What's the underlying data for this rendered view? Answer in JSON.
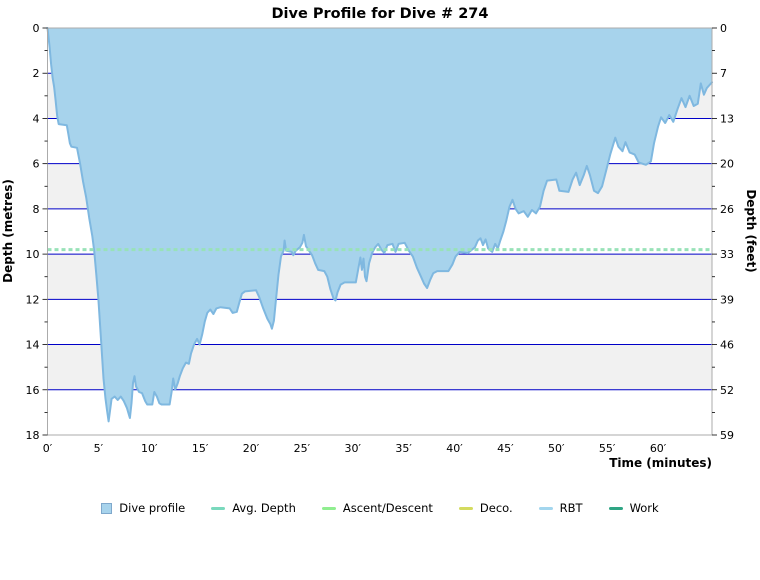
{
  "chart_data": {
    "type": "area",
    "title": "Dive Profile for Dive # 274",
    "xlabel": "Time (minutes)",
    "ylabel_left": "Depth (metres)",
    "ylabel_right": "Depth (feet)",
    "xlim": [
      0,
      65.3
    ],
    "ylim_depth": [
      0,
      18
    ],
    "grid": "horizontal-only",
    "x_tick_minutes": [
      0,
      5,
      10,
      15,
      20,
      25,
      30,
      35,
      40,
      45,
      50,
      55,
      60
    ],
    "x_tick_labels": [
      "0′",
      "5′",
      "10′",
      "15′",
      "20′",
      "25′",
      "30′",
      "35′",
      "40′",
      "45′",
      "50′",
      "55′",
      "60′"
    ],
    "y_ticks_left_metres": [
      0,
      2,
      4,
      6,
      8,
      10,
      12,
      14,
      16,
      18
    ],
    "y_ticks_right_feet_labels": [
      "0",
      "7",
      "13",
      "20",
      "26",
      "33",
      "39",
      "46",
      "52",
      "59"
    ],
    "avg_depth_m": 9.8,
    "max_depth_m": 17.4,
    "profile": {
      "name": "Dive profile",
      "points": [
        [
          0,
          0
        ],
        [
          0.2,
          0.8
        ],
        [
          0.35,
          1.6
        ],
        [
          0.5,
          2.2
        ],
        [
          0.65,
          2.6
        ],
        [
          0.8,
          3.2
        ],
        [
          0.95,
          3.9
        ],
        [
          1.1,
          4.25
        ],
        [
          1.9,
          4.3
        ],
        [
          2.05,
          4.7
        ],
        [
          2.2,
          5.1
        ],
        [
          2.35,
          5.25
        ],
        [
          2.9,
          5.3
        ],
        [
          3.2,
          6
        ],
        [
          3.5,
          6.8
        ],
        [
          3.8,
          7.5
        ],
        [
          4.1,
          8.4
        ],
        [
          4.4,
          9.2
        ],
        [
          4.6,
          9.9
        ],
        [
          4.8,
          10.9
        ],
        [
          5,
          12
        ],
        [
          5.25,
          13.7
        ],
        [
          5.5,
          15.5
        ],
        [
          5.7,
          16.4
        ],
        [
          5.85,
          16.9
        ],
        [
          6,
          17.4
        ],
        [
          6.15,
          16.9
        ],
        [
          6.3,
          16.4
        ],
        [
          6.6,
          16.3
        ],
        [
          6.9,
          16.45
        ],
        [
          7.2,
          16.3
        ],
        [
          7.5,
          16.5
        ],
        [
          7.8,
          16.8
        ],
        [
          8,
          17.1
        ],
        [
          8.1,
          17.25
        ],
        [
          8.25,
          16.6
        ],
        [
          8.4,
          15.7
        ],
        [
          8.55,
          15.4
        ],
        [
          8.7,
          15.85
        ],
        [
          9,
          16.1
        ],
        [
          9.3,
          16.15
        ],
        [
          9.6,
          16.5
        ],
        [
          9.8,
          16.65
        ],
        [
          10.3,
          16.65
        ],
        [
          10.5,
          16.1
        ],
        [
          10.75,
          16.3
        ],
        [
          11,
          16.6
        ],
        [
          11.2,
          16.65
        ],
        [
          12,
          16.65
        ],
        [
          12.2,
          16.1
        ],
        [
          12.35,
          15.5
        ],
        [
          12.55,
          16
        ],
        [
          12.8,
          15.7
        ],
        [
          13,
          15.4
        ],
        [
          13.3,
          15.05
        ],
        [
          13.6,
          14.8
        ],
        [
          13.9,
          14.85
        ],
        [
          14.1,
          14.4
        ],
        [
          14.4,
          14
        ],
        [
          14.7,
          13.75
        ],
        [
          14.95,
          14
        ],
        [
          15.2,
          13.55
        ],
        [
          15.45,
          13
        ],
        [
          15.7,
          12.6
        ],
        [
          16,
          12.45
        ],
        [
          16.3,
          12.65
        ],
        [
          16.6,
          12.4
        ],
        [
          17,
          12.35
        ],
        [
          17.9,
          12.4
        ],
        [
          18.2,
          12.6
        ],
        [
          18.6,
          12.55
        ],
        [
          18.85,
          12.15
        ],
        [
          19.1,
          11.75
        ],
        [
          19.4,
          11.65
        ],
        [
          20.5,
          11.6
        ],
        [
          20.8,
          11.9
        ],
        [
          21.2,
          12.4
        ],
        [
          21.6,
          12.85
        ],
        [
          21.9,
          13.1
        ],
        [
          22.05,
          13.3
        ],
        [
          22.25,
          12.95
        ],
        [
          22.45,
          12
        ],
        [
          22.7,
          10.9
        ],
        [
          22.95,
          10.1
        ],
        [
          23.2,
          9.85
        ],
        [
          23.3,
          9.4
        ],
        [
          23.45,
          9.85
        ],
        [
          24,
          9.9
        ],
        [
          24.15,
          10.05
        ],
        [
          24.4,
          9.85
        ],
        [
          24.8,
          9.7
        ],
        [
          25.05,
          9.5
        ],
        [
          25.2,
          9.15
        ],
        [
          25.4,
          9.65
        ],
        [
          25.7,
          9.85
        ],
        [
          26,
          10.05
        ],
        [
          26.3,
          10.4
        ],
        [
          26.6,
          10.7
        ],
        [
          27.2,
          10.75
        ],
        [
          27.5,
          11
        ],
        [
          27.8,
          11.55
        ],
        [
          28.1,
          11.95
        ],
        [
          28.3,
          12.05
        ],
        [
          28.5,
          11.7
        ],
        [
          28.8,
          11.35
        ],
        [
          29.2,
          11.25
        ],
        [
          30.3,
          11.25
        ],
        [
          30.6,
          10.5
        ],
        [
          30.75,
          10.15
        ],
        [
          30.9,
          10.7
        ],
        [
          31.05,
          10.2
        ],
        [
          31.2,
          11
        ],
        [
          31.35,
          11.2
        ],
        [
          31.6,
          10.4
        ],
        [
          31.9,
          9.95
        ],
        [
          32.2,
          9.7
        ],
        [
          32.5,
          9.55
        ],
        [
          32.8,
          9.8
        ],
        [
          33.1,
          9.95
        ],
        [
          33.4,
          9.6
        ],
        [
          33.9,
          9.55
        ],
        [
          34.2,
          9.9
        ],
        [
          34.5,
          9.55
        ],
        [
          35.1,
          9.5
        ],
        [
          35.5,
          9.85
        ],
        [
          35.9,
          10.1
        ],
        [
          36.3,
          10.6
        ],
        [
          36.7,
          11
        ],
        [
          37,
          11.3
        ],
        [
          37.3,
          11.5
        ],
        [
          37.6,
          11.15
        ],
        [
          37.9,
          10.85
        ],
        [
          38.3,
          10.75
        ],
        [
          39.4,
          10.75
        ],
        [
          39.8,
          10.45
        ],
        [
          40.1,
          10.1
        ],
        [
          40.5,
          9.9
        ],
        [
          41.3,
          9.95
        ],
        [
          42,
          9.7
        ],
        [
          42.3,
          9.4
        ],
        [
          42.55,
          9.3
        ],
        [
          42.8,
          9.6
        ],
        [
          43.05,
          9.35
        ],
        [
          43.3,
          9.75
        ],
        [
          43.7,
          9.9
        ],
        [
          44,
          9.55
        ],
        [
          44.25,
          9.75
        ],
        [
          44.5,
          9.4
        ],
        [
          44.8,
          9
        ],
        [
          45.1,
          8.5
        ],
        [
          45.4,
          7.9
        ],
        [
          45.7,
          7.6
        ],
        [
          46,
          8
        ],
        [
          46.3,
          8.2
        ],
        [
          46.8,
          8.1
        ],
        [
          47.2,
          8.35
        ],
        [
          47.6,
          8.05
        ],
        [
          48,
          8.2
        ],
        [
          48.4,
          7.9
        ],
        [
          48.75,
          7.2
        ],
        [
          49.1,
          6.75
        ],
        [
          50,
          6.7
        ],
        [
          50.3,
          7.2
        ],
        [
          51.2,
          7.25
        ],
        [
          51.6,
          6.7
        ],
        [
          51.95,
          6.4
        ],
        [
          52.3,
          6.95
        ],
        [
          52.7,
          6.5
        ],
        [
          53,
          6.1
        ],
        [
          53.3,
          6.5
        ],
        [
          53.7,
          7.2
        ],
        [
          54.1,
          7.3
        ],
        [
          54.5,
          7
        ],
        [
          54.9,
          6.3
        ],
        [
          55.3,
          5.6
        ],
        [
          55.8,
          4.85
        ],
        [
          56.1,
          5.25
        ],
        [
          56.5,
          5.45
        ],
        [
          56.8,
          5.05
        ],
        [
          57.2,
          5.5
        ],
        [
          57.7,
          5.6
        ],
        [
          58.1,
          5.95
        ],
        [
          58.8,
          6.05
        ],
        [
          59.3,
          5.9
        ],
        [
          59.6,
          5.1
        ],
        [
          60,
          4.35
        ],
        [
          60.3,
          3.95
        ],
        [
          60.7,
          4.2
        ],
        [
          61.1,
          3.85
        ],
        [
          61.5,
          4.15
        ],
        [
          61.9,
          3.6
        ],
        [
          62.3,
          3.1
        ],
        [
          62.7,
          3.5
        ],
        [
          63.1,
          3
        ],
        [
          63.5,
          3.45
        ],
        [
          63.9,
          3.35
        ],
        [
          64.2,
          2.45
        ],
        [
          64.5,
          2.95
        ],
        [
          64.8,
          2.65
        ],
        [
          65.1,
          2.5
        ],
        [
          65.3,
          2.4
        ]
      ]
    },
    "legend": [
      {
        "label": "Dive profile",
        "shape": "square",
        "color": "#A7D3EC",
        "border": "#7FA8CC"
      },
      {
        "label": "Avg. Depth",
        "shape": "dash",
        "color": "#7AD9BD"
      },
      {
        "label": "Ascent/Descent",
        "shape": "dash",
        "color": "#90EE90"
      },
      {
        "label": "Deco.",
        "shape": "dash",
        "color": "#D4DB5F"
      },
      {
        "label": "RBT",
        "shape": "dash",
        "color": "#A3D6EE"
      },
      {
        "label": "Work",
        "shape": "dash",
        "color": "#2FA584"
      }
    ],
    "legend_position": "bottom-center"
  },
  "colors": {
    "profile_fill": "#A7D3EC",
    "profile_stroke": "#7FB8E0",
    "gridline": "#0000C8",
    "band_gray": "#F1F1F1",
    "avg_depth_line": "#98E2B8",
    "plot_border": "#ABABAB",
    "text": "#000000",
    "background": "#FFFFFF"
  }
}
